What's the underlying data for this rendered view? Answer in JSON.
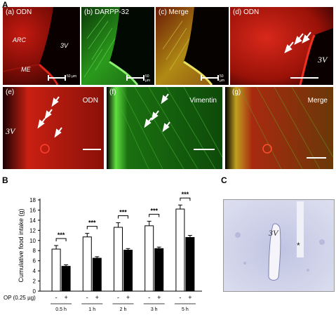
{
  "figure": {
    "label_A": "A",
    "label_B": "B",
    "label_C": "C"
  },
  "panels_top": [
    {
      "letter": "(a)",
      "name": "ODN",
      "extra": [
        "ARC",
        "3V",
        "ME"
      ],
      "scale": "50 µm"
    },
    {
      "letter": "(b)",
      "name": "DARPP-32",
      "scale": "50 µm"
    },
    {
      "letter": "(c)",
      "name": "Merge",
      "scale": "50 µm"
    },
    {
      "letter": "(d)",
      "name": "ODN",
      "extra": [
        "3V"
      ]
    }
  ],
  "panels_bottom": [
    {
      "letter": "(e)",
      "name": "ODN",
      "extra": [
        "3V"
      ]
    },
    {
      "letter": "(f)",
      "name": "Vimentin"
    },
    {
      "letter": "(g)",
      "name": "Merge"
    }
  ],
  "panel_c": {
    "ventricle": "3V",
    "mark": "*"
  },
  "colors": {
    "red": "#d81c10",
    "green": "#29c81e",
    "tissue_blue": "#b9bde0"
  },
  "chart_data": {
    "type": "bar",
    "ylabel": "Cumulative food intake (g)",
    "ylim": [
      0,
      18
    ],
    "yticks": [
      0,
      2,
      4,
      6,
      8,
      10,
      12,
      14,
      16,
      18
    ],
    "treatment_label": "OP (0.25 µg)",
    "treatment_marks": [
      "-",
      "+"
    ],
    "categories": [
      "0.5 h",
      "1 h",
      "2 h",
      "3 h",
      "5 h"
    ],
    "series": [
      {
        "marker": "-",
        "color": "#ffffff",
        "values": [
          8.3,
          10.7,
          12.6,
          12.9,
          16.2
        ],
        "errors": [
          0.7,
          0.7,
          0.9,
          0.9,
          0.8
        ]
      },
      {
        "marker": "+",
        "color": "#000000",
        "values": [
          4.9,
          6.5,
          8.1,
          8.4,
          10.6
        ],
        "errors": [
          0.3,
          0.3,
          0.3,
          0.3,
          0.4
        ]
      }
    ],
    "significance": [
      "***",
      "***",
      "***",
      "***",
      "***"
    ]
  }
}
